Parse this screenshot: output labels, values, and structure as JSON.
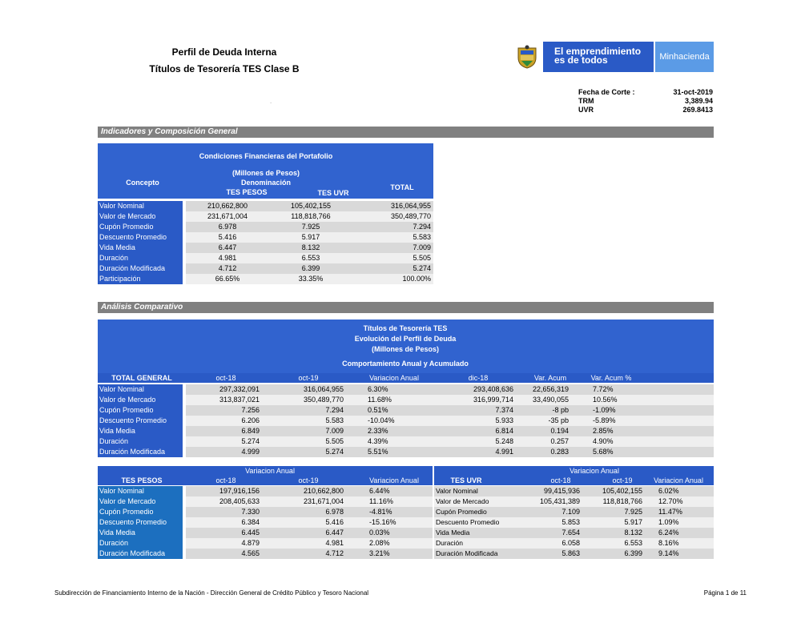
{
  "header": {
    "title1": "Perfil de Deuda Interna",
    "title2": "Títulos de Tesorería TES Clase B",
    "dot": ".",
    "logo_text1": "El emprendimiento",
    "logo_text2": "es de todos",
    "logo_min": "Minhacienda",
    "meta": [
      {
        "label": "Fecha de Corte :",
        "value": "31-oct-2019"
      },
      {
        "label": "TRM",
        "value": "3,389.94"
      },
      {
        "label": "UVR",
        "value": "269.8413"
      }
    ]
  },
  "section1": {
    "bar": "Indicadores y Composición General",
    "head_title": "Condiciones Financieras del Portafolio",
    "head_sub1": "(Millones de Pesos)",
    "head_sub2": "Denominación",
    "concepto": "Concepto",
    "col_pesos": "TES PESOS",
    "col_uvr": "TES UVR",
    "col_total": "TOTAL",
    "rows": [
      {
        "label": "Valor Nominal",
        "pesos": "210,662,800",
        "uvr": "105,402,155",
        "total": "316,064,955"
      },
      {
        "label": "Valor de Mercado",
        "pesos": "231,671,004",
        "uvr": "118,818,766",
        "total": "350,489,770"
      },
      {
        "label": "Cupón Promedio",
        "pesos": "6.978",
        "uvr": "7.925",
        "total": "7.294"
      },
      {
        "label": "Descuento Promedio",
        "pesos": "5.416",
        "uvr": "5.917",
        "total": "5.583"
      },
      {
        "label": "Vida Media",
        "pesos": "6.447",
        "uvr": "8.132",
        "total": "7.009"
      },
      {
        "label": "Duración",
        "pesos": "4.981",
        "uvr": "6.553",
        "total": "5.505"
      },
      {
        "label": "Duración Modificada",
        "pesos": "4.712",
        "uvr": "6.399",
        "total": "5.274"
      },
      {
        "label": "Participación",
        "pesos": "66.65%",
        "uvr": "33.35%",
        "total": "100.00%"
      }
    ]
  },
  "section2": {
    "bar": "Análisis Comparativo",
    "head1": "Títulos de Tesorería TES",
    "head2": "Evolución del Perfil de Deuda",
    "head3": "(Millones de Pesos)",
    "head4": "Comportamiento Anual y Acumulado",
    "cols": [
      "TOTAL GENERAL",
      "oct-18",
      "oct-19",
      "Variacion Anual",
      "dic-18",
      "Var. Acum",
      "Var. Acum %"
    ],
    "rows": [
      {
        "label": "Valor Nominal",
        "a": "297,332,091",
        "b": "316,064,955",
        "c": "6.30%",
        "d": "293,408,636",
        "e": "22,656,319",
        "f": "7.72%"
      },
      {
        "label": "Valor de Mercado",
        "a": "313,837,021",
        "b": "350,489,770",
        "c": "11.68%",
        "d": "316,999,714",
        "e": "33,490,055",
        "f": "10.56%"
      },
      {
        "label": "Cupón Promedio",
        "a": "7.256",
        "b": "7.294",
        "c": "0.51%",
        "d": "7.374",
        "e": "-8 pb",
        "f": "-1.09%"
      },
      {
        "label": "Descuento Promedio",
        "a": "6.206",
        "b": "5.583",
        "c": "-10.04%",
        "d": "5.933",
        "e": "-35 pb",
        "f": "-5.89%"
      },
      {
        "label": "Vida Media",
        "a": "6.849",
        "b": "7.009",
        "c": "2.33%",
        "d": "6.814",
        "e": "0.194",
        "f": "2.85%"
      },
      {
        "label": "Duración",
        "a": "5.274",
        "b": "5.505",
        "c": "4.39%",
        "d": "5.248",
        "e": "0.257",
        "f": "4.90%"
      },
      {
        "label": "Duración Modificada",
        "a": "4.999",
        "b": "5.274",
        "c": "5.51%",
        "d": "4.991",
        "e": "0.283",
        "f": "5.68%"
      }
    ]
  },
  "pesos_table": {
    "group": "Variacion Anual",
    "cols": [
      "TES PESOS",
      "oct-18",
      "oct-19",
      "Variacion Anual"
    ],
    "rows": [
      {
        "label": "Valor Nominal",
        "a": "197,916,156",
        "b": "210,662,800",
        "c": "6.44%"
      },
      {
        "label": "Valor de Mercado",
        "a": "208,405,633",
        "b": "231,671,004",
        "c": "11.16%"
      },
      {
        "label": "Cupón Promedio",
        "a": "7.330",
        "b": "6.978",
        "c": "-4.81%"
      },
      {
        "label": "Descuento Promedio",
        "a": "6.384",
        "b": "5.416",
        "c": "-15.16%"
      },
      {
        "label": "Vida Media",
        "a": "6.445",
        "b": "6.447",
        "c": "0.03%"
      },
      {
        "label": "Duración",
        "a": "4.879",
        "b": "4.981",
        "c": "2.08%"
      },
      {
        "label": "Duración Modificada",
        "a": "4.565",
        "b": "4.712",
        "c": "3.21%"
      }
    ]
  },
  "uvr_table": {
    "group": "Variacion Anual",
    "cols": [
      "TES UVR",
      "oct-18",
      "oct-19",
      "Variacion Anual"
    ],
    "rows": [
      {
        "label": "Valor Nominal",
        "a": "99,415,936",
        "b": "105,402,155",
        "c": "6.02%"
      },
      {
        "label": "Valor de Mercado",
        "a": "105,431,389",
        "b": "118,818,766",
        "c": "12.70%"
      },
      {
        "label": "Cupón Promedio",
        "a": "7.109",
        "b": "7.925",
        "c": "11.47%"
      },
      {
        "label": "Descuento Promedio",
        "a": "5.853",
        "b": "5.917",
        "c": "1.09%"
      },
      {
        "label": "Vida Media",
        "a": "7.654",
        "b": "8.132",
        "c": "6.24%"
      },
      {
        "label": "Duración",
        "a": "6.058",
        "b": "6.553",
        "c": "8.16%"
      },
      {
        "label": "Duración Modificada",
        "a": "5.863",
        "b": "6.399",
        "c": "9.14%"
      }
    ]
  },
  "footer": {
    "left": "Subdirección de Financiamiento Interno de la Nación - Dirección General de Crédito Público y Tesoro Nacional",
    "right": "Página 1 de 11"
  }
}
